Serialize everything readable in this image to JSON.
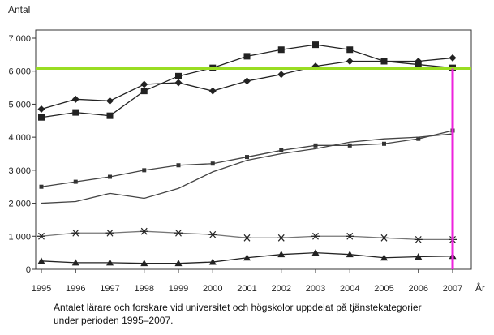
{
  "chart_data": {
    "type": "line",
    "ylabel": "Antal",
    "xlabel": "År",
    "x": [
      1995,
      1996,
      1997,
      1998,
      1999,
      2000,
      2001,
      2002,
      2003,
      2004,
      2005,
      2006,
      2007
    ],
    "ylim": [
      0,
      7000
    ],
    "yticks": [
      0,
      1000,
      2000,
      3000,
      4000,
      5000,
      6000,
      7000
    ],
    "ytick_labels": [
      "0",
      "1 000",
      "2 000",
      "3 000",
      "4 000",
      "5 000",
      "6 000",
      "7 000"
    ],
    "grid": false,
    "series": [
      {
        "marker": "diamond",
        "color": "#222222",
        "values": [
          4850,
          5150,
          5100,
          5600,
          5650,
          5400,
          5700,
          5900,
          6150,
          6300,
          6300,
          6300,
          6400
        ]
      },
      {
        "marker": "square",
        "color": "#222222",
        "values": [
          4600,
          4750,
          4650,
          5400,
          5850,
          6100,
          6450,
          6650,
          6800,
          6650,
          6300,
          6200,
          6100
        ]
      },
      {
        "marker": "small-square",
        "color": "#444444",
        "values": [
          2500,
          2650,
          2800,
          3000,
          3150,
          3200,
          3400,
          3600,
          3750,
          3750,
          3800,
          3950,
          4200
        ]
      },
      {
        "marker": "none",
        "color": "#444444",
        "values": [
          2000,
          2050,
          2300,
          2150,
          2450,
          2950,
          3300,
          3500,
          3650,
          3850,
          3950,
          4000,
          4100
        ]
      },
      {
        "marker": "asterisk",
        "color": "#777777",
        "values": [
          1000,
          1100,
          1100,
          1150,
          1100,
          1050,
          950,
          950,
          1000,
          1000,
          950,
          900,
          900
        ]
      },
      {
        "marker": "triangle",
        "color": "#222222",
        "values": [
          250,
          200,
          200,
          180,
          180,
          220,
          350,
          450,
          500,
          450,
          350,
          380,
          400
        ]
      }
    ],
    "annotations": [
      {
        "type": "hline",
        "y": 6080,
        "color": "#99dd22"
      },
      {
        "type": "vline",
        "x": 2007,
        "color": "#ee22dd"
      }
    ]
  },
  "caption": {
    "line1": "Antalet lärare och forskare vid universitet och högskolor uppdelat på tjänstekategorier",
    "line2": "under perioden 1995–2007."
  }
}
